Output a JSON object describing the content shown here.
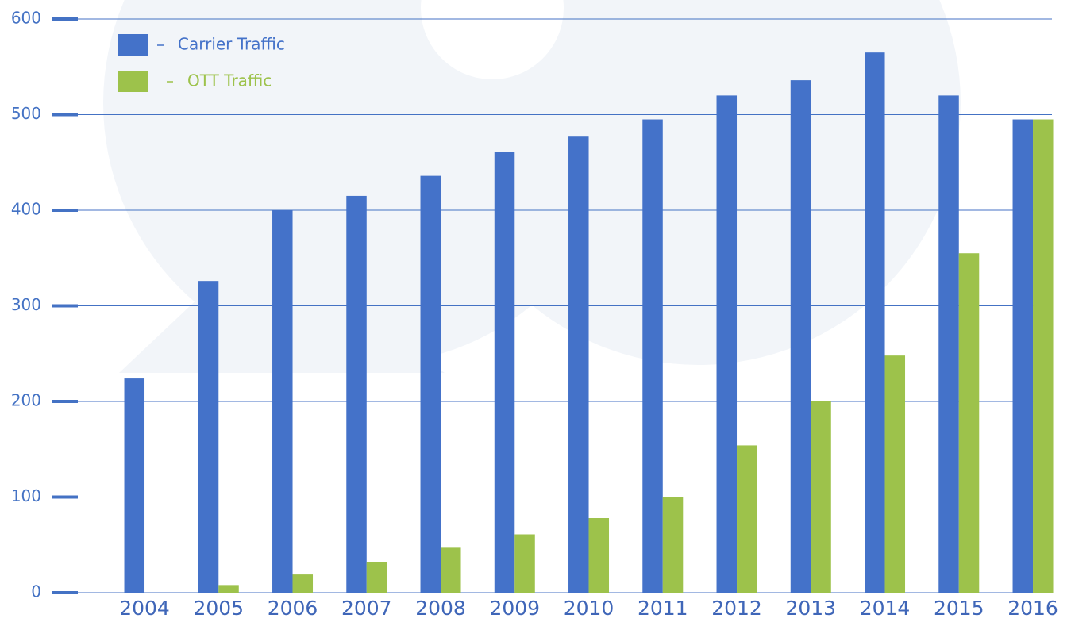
{
  "chart_data": {
    "type": "bar",
    "categories": [
      "2004",
      "2005",
      "2006",
      "2007",
      "2008",
      "2009",
      "2010",
      "2011",
      "2012",
      "2013",
      "2014",
      "2015",
      "2016"
    ],
    "series": [
      {
        "name": "Carrier Traffic",
        "color": "#4472c9",
        "values": [
          224,
          326,
          400,
          415,
          436,
          461,
          477,
          495,
          520,
          536,
          565,
          520,
          495
        ]
      },
      {
        "name": "OTT Traffic",
        "color": "#9dc24b",
        "values": [
          0,
          8,
          19,
          32,
          47,
          61,
          78,
          100,
          154,
          200,
          248,
          355,
          495
        ]
      }
    ],
    "ylim": [
      0,
      600
    ],
    "yticks": [
      0,
      100,
      200,
      300,
      400,
      500,
      600
    ],
    "grid": true,
    "legend": "top-left"
  }
}
